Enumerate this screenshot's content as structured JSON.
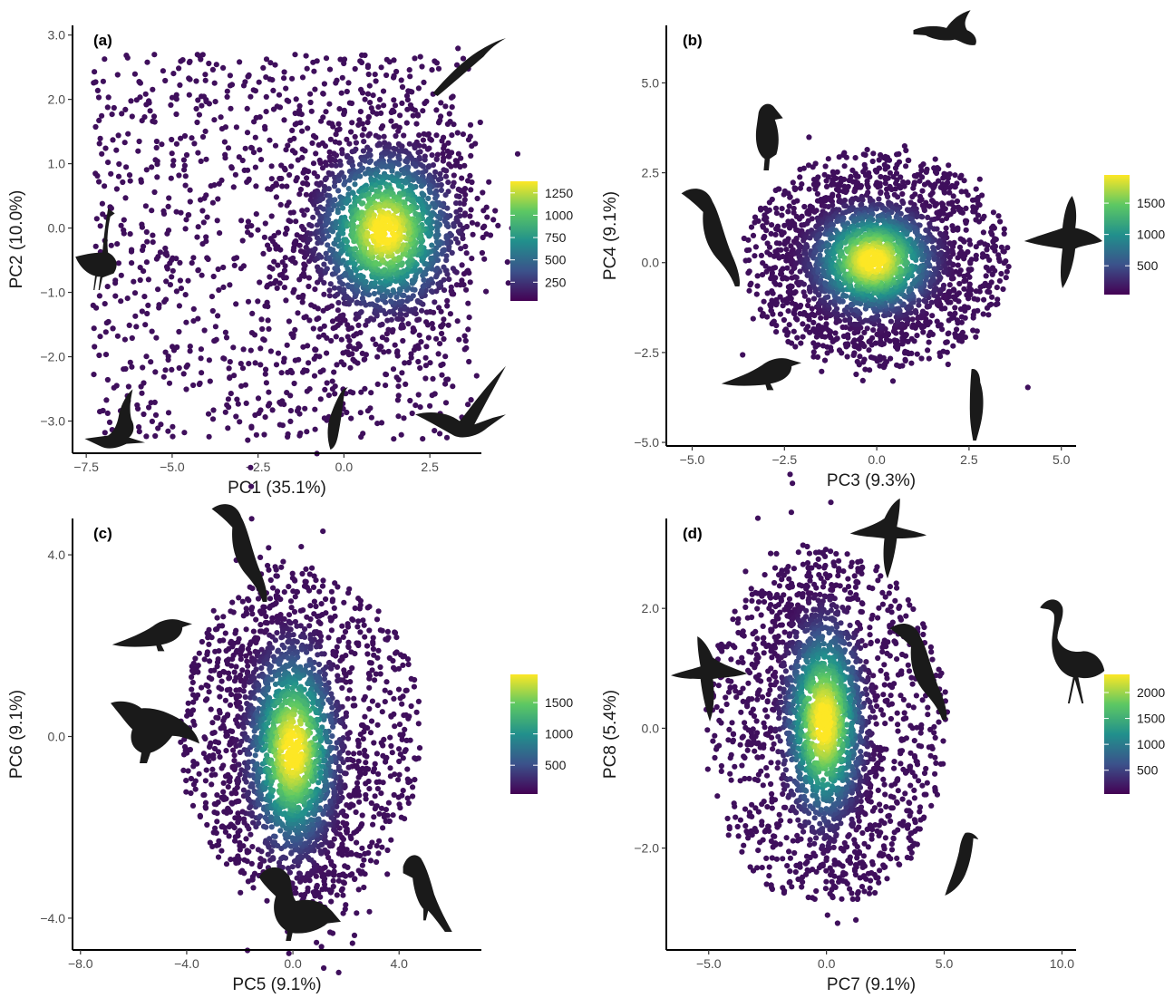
{
  "figure": {
    "colormap": [
      "#440154",
      "#3b528b",
      "#21908c",
      "#5dc863",
      "#fde725"
    ],
    "outer_color": "#3f0f5c",
    "silhouette_color": "#1a1a1a"
  },
  "chart_data": [
    {
      "type": "scatter",
      "panel": "(a)",
      "xlabel": "PC1 (35.1%)",
      "ylabel": "PC2 (10.0%)",
      "xlim": [
        -7.9,
        4.0
      ],
      "ylim": [
        -3.5,
        3.15
      ],
      "xticks": [
        -7.5,
        -5.0,
        -2.5,
        0.0,
        2.5
      ],
      "xtick_labels": [
        "−7.5",
        "−5.0",
        "−2.5",
        "0.0",
        "2.5"
      ],
      "yticks": [
        -3.0,
        -2.0,
        -1.0,
        0.0,
        1.0,
        2.0,
        3.0
      ],
      "ytick_labels": [
        "−3.0",
        "−2.0",
        "−1.0",
        "0.0",
        "1.0",
        "2.0",
        "3.0"
      ],
      "color_legend": {
        "ticks": [
          250,
          500,
          750,
          1000,
          1250
        ],
        "tick_labels": [
          "250",
          "500",
          "750",
          "1000",
          "1250"
        ],
        "range": [
          40,
          1380
        ]
      },
      "density": {
        "center": [
          1.2,
          -0.05
        ],
        "spread": [
          0.95,
          0.6
        ],
        "rho": 0.05
      },
      "cloud": {
        "x_range": [
          -7.3,
          3.7
        ],
        "y_range": [
          -3.3,
          2.7
        ],
        "center": [
          -1.2,
          -0.2
        ],
        "radius": [
          6.0,
          3.3
        ]
      },
      "point_count": 2800,
      "grid": false,
      "legend": "right",
      "silhouettes": [
        "swift-silhouette",
        "crane-silhouette",
        "pelican-silhouette",
        "hummingbird-silhouette",
        "tern-silhouette"
      ]
    },
    {
      "type": "scatter",
      "panel": "(b)",
      "xlabel": "PC3 (9.3%)",
      "ylabel": "PC4 (9.1%)",
      "xlim": [
        -5.7,
        5.4
      ],
      "ylim": [
        -5.1,
        6.6
      ],
      "xticks": [
        -5.0,
        -2.5,
        0.0,
        2.5,
        5.0
      ],
      "xtick_labels": [
        "−5.0",
        "−2.5",
        "0.0",
        "2.5",
        "5.0"
      ],
      "yticks": [
        -5.0,
        -2.5,
        0.0,
        2.5,
        5.0
      ],
      "ytick_labels": [
        "−5.0",
        "−2.5",
        "0.0",
        "2.5",
        "5.0"
      ],
      "color_legend": {
        "ticks": [
          500,
          1000,
          1500
        ],
        "tick_labels": [
          "500",
          "1000",
          "1500"
        ],
        "range": [
          40,
          1950
        ]
      },
      "density": {
        "center": [
          -0.1,
          0.05
        ],
        "spread": [
          0.85,
          0.75
        ],
        "rho": 0.0
      },
      "cloud": {
        "x_range": [
          -5.0,
          4.9
        ],
        "y_range": [
          -4.9,
          6.3
        ],
        "center": [
          0.0,
          0.1
        ],
        "radius": [
          3.6,
          3.1
        ]
      },
      "point_count": 2600,
      "grid": false,
      "legend": "right",
      "silhouettes": [
        "duck-flying-silhouette",
        "puffin-silhouette",
        "hornbill-silhouette",
        "albatross-silhouette",
        "finch-silhouette",
        "hawk-silhouette"
      ]
    },
    {
      "type": "scatter",
      "panel": "(c)",
      "xlabel": "PC5 (9.1%)",
      "ylabel": "PC6 (9.1%)",
      "xlim": [
        -8.3,
        7.1
      ],
      "ylim": [
        -4.7,
        4.8
      ],
      "xticks": [
        -8.0,
        -4.0,
        0.0,
        4.0
      ],
      "xtick_labels": [
        "−8.0",
        "−4.0",
        "0.0",
        "4.0"
      ],
      "yticks": [
        -4.0,
        0.0,
        4.0
      ],
      "ytick_labels": [
        "−4.0",
        "0.0",
        "4.0"
      ],
      "color_legend": {
        "ticks": [
          500,
          1000,
          1500
        ],
        "tick_labels": [
          "500",
          "1000",
          "1500"
        ],
        "range": [
          40,
          1950
        ]
      },
      "density": {
        "center": [
          0.0,
          -0.3
        ],
        "spread": [
          0.85,
          1.15
        ],
        "rho": -0.25
      },
      "cloud": {
        "x_range": [
          -7.8,
          6.4
        ],
        "y_range": [
          -4.3,
          4.4
        ],
        "center": [
          0.3,
          0.0
        ],
        "radius": [
          4.6,
          3.6
        ]
      },
      "point_count": 2600,
      "grid": false,
      "legend": "right",
      "silhouettes": [
        "hornbill-silhouette",
        "finch-silhouette",
        "vulture-silhouette",
        "duck-silhouette",
        "bulbul-silhouette"
      ]
    },
    {
      "type": "scatter",
      "panel": "(d)",
      "xlabel": "PC7 (9.1%)",
      "ylabel": "PC8 (5.4%)",
      "xlim": [
        -6.8,
        10.6
      ],
      "ylim": [
        -3.7,
        3.5
      ],
      "xticks": [
        -5.0,
        0.0,
        5.0,
        10.0
      ],
      "xtick_labels": [
        "−5.0",
        "0.0",
        "5.0",
        "10.0"
      ],
      "yticks": [
        -2.0,
        0.0,
        2.0
      ],
      "ytick_labels": [
        "−2.0",
        "0.0",
        "2.0"
      ],
      "color_legend": {
        "ticks": [
          500,
          1000,
          1500,
          2000
        ],
        "tick_labels": [
          "500",
          "1000",
          "1500",
          "2000"
        ],
        "range": [
          40,
          2350
        ]
      },
      "density": {
        "center": [
          -0.1,
          0.1
        ],
        "spread": [
          0.85,
          0.85
        ],
        "rho": -0.3
      },
      "cloud": {
        "x_range": [
          -6.3,
          10.0
        ],
        "y_range": [
          -3.6,
          3.2
        ],
        "center": [
          0.0,
          0.0
        ],
        "radius": [
          5.2,
          3.0
        ]
      },
      "point_count": 2500,
      "grid": false,
      "legend": "right",
      "silhouettes": [
        "gull-silhouette",
        "albatross-silhouette",
        "hornbill-silhouette",
        "flamingo-silhouette",
        "honeyeater-silhouette"
      ]
    }
  ]
}
